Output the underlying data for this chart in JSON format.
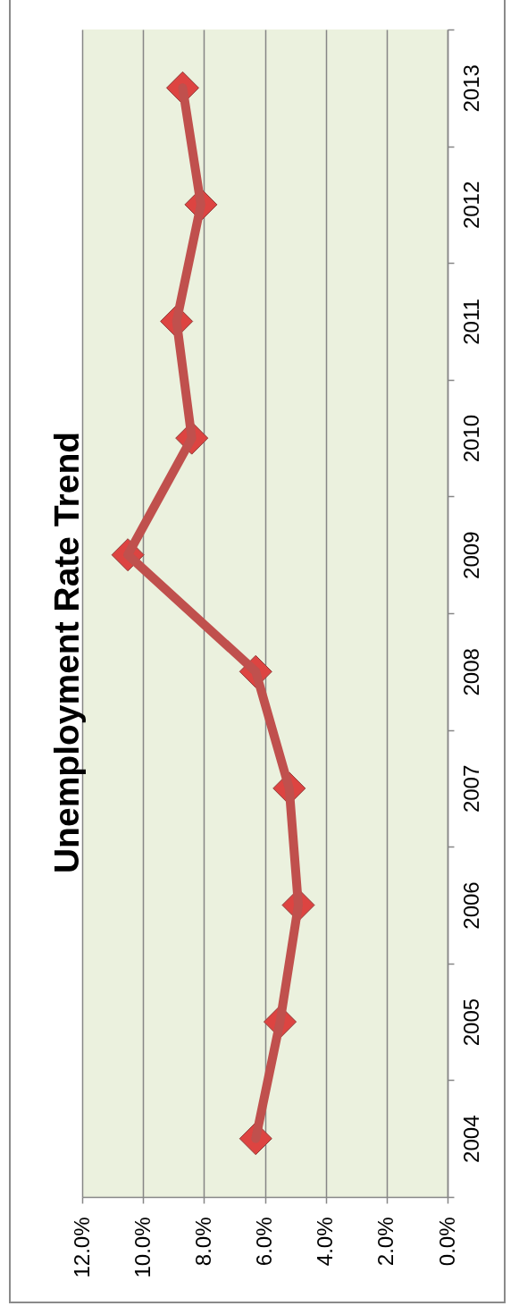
{
  "chart_data": {
    "type": "line",
    "title": "Unemployment Rate Trend",
    "orientation": "horizontal",
    "categories": [
      "2013",
      "2012",
      "2011",
      "2010",
      "2009",
      "2008",
      "2007",
      "2006",
      "2005",
      "2004"
    ],
    "series": [
      {
        "color": "#c0504d",
        "values": [
          8.7,
          8.1,
          8.9,
          8.4,
          10.5,
          6.3,
          5.2,
          4.9,
          5.5,
          6.3
        ]
      }
    ],
    "xlim": [
      12,
      0
    ],
    "xticks": [
      {
        "value": 12,
        "label": "12.0%"
      },
      {
        "value": 10,
        "label": "10.0%"
      },
      {
        "value": 8,
        "label": "8.0%"
      },
      {
        "value": 6,
        "label": "6.0%"
      },
      {
        "value": 4,
        "label": "4.0%"
      },
      {
        "value": 2,
        "label": "2.0%"
      },
      {
        "value": 0,
        "label": "0.0%"
      }
    ],
    "grid": "x",
    "marker": "diamond"
  }
}
